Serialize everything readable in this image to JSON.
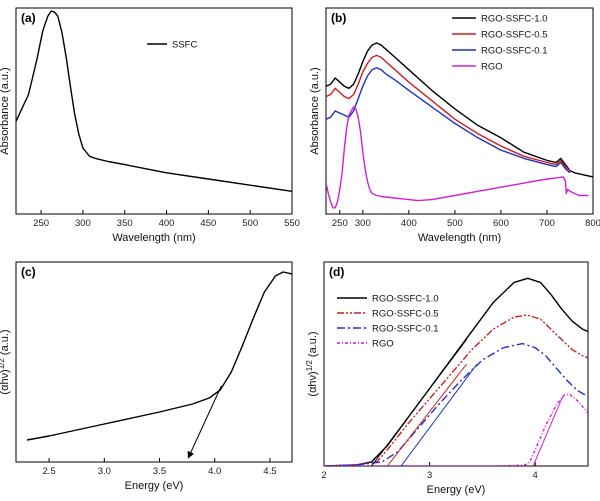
{
  "chart_data": [
    {
      "id": "a",
      "type": "line",
      "panel_label": "(a)",
      "xlabel": "Wavelength (nm)",
      "ylabel": "Absorbance (a.u.)",
      "xlim": [
        220,
        550
      ],
      "ylim": [
        0,
        1
      ],
      "xticks": [
        250,
        300,
        350,
        400,
        450,
        500,
        550
      ],
      "legend_position": "top-right",
      "series": [
        {
          "name": "SSFC",
          "color": "#000000",
          "dash": "",
          "x": [
            220,
            235,
            245,
            252,
            258,
            262,
            266,
            270,
            275,
            280,
            285,
            290,
            295,
            300,
            308,
            315,
            330,
            350,
            400,
            450,
            500,
            550
          ],
          "y": [
            0.45,
            0.58,
            0.75,
            0.89,
            0.96,
            0.985,
            0.98,
            0.96,
            0.88,
            0.76,
            0.62,
            0.49,
            0.39,
            0.32,
            0.28,
            0.27,
            0.255,
            0.24,
            0.2,
            0.17,
            0.14,
            0.11
          ]
        }
      ]
    },
    {
      "id": "b",
      "type": "line",
      "panel_label": "(b)",
      "xlabel": "Wavelength (nm)",
      "ylabel": "Absorbance (a.u.)",
      "xlim": [
        220,
        800
      ],
      "ylim": [
        0,
        1
      ],
      "xticks": [
        250,
        300,
        400,
        500,
        600,
        700,
        800
      ],
      "legend_position": "top-right",
      "series": [
        {
          "name": "RGO-SSFC-1.0",
          "color": "#000000",
          "dash": "",
          "x": [
            220,
            230,
            240,
            250,
            260,
            270,
            280,
            290,
            300,
            310,
            320,
            330,
            340,
            350,
            370,
            400,
            450,
            500,
            550,
            600,
            650,
            700,
            720,
            730,
            740,
            750,
            760,
            780,
            800
          ],
          "y": [
            0.62,
            0.63,
            0.66,
            0.64,
            0.62,
            0.61,
            0.63,
            0.68,
            0.74,
            0.79,
            0.82,
            0.83,
            0.82,
            0.8,
            0.76,
            0.7,
            0.6,
            0.51,
            0.43,
            0.37,
            0.3,
            0.26,
            0.25,
            0.27,
            0.24,
            0.21,
            0.2,
            0.19,
            0.18
          ]
        },
        {
          "name": "RGO-SSFC-0.5",
          "color": "#cc1f1f",
          "dash": "",
          "x": [
            220,
            230,
            240,
            250,
            260,
            270,
            280,
            290,
            300,
            310,
            320,
            330,
            340,
            350,
            370,
            400,
            450,
            500,
            550,
            600,
            650,
            700,
            720,
            730,
            740,
            750
          ],
          "y": [
            0.57,
            0.58,
            0.61,
            0.59,
            0.57,
            0.56,
            0.58,
            0.63,
            0.69,
            0.73,
            0.76,
            0.77,
            0.76,
            0.74,
            0.7,
            0.64,
            0.55,
            0.46,
            0.39,
            0.33,
            0.28,
            0.25,
            0.24,
            0.26,
            0.23,
            0.21
          ]
        },
        {
          "name": "RGO-SSFC-0.1",
          "color": "#1f2fcc",
          "dash": "",
          "x": [
            220,
            230,
            240,
            250,
            260,
            270,
            280,
            290,
            300,
            310,
            320,
            330,
            340,
            350,
            370,
            400,
            450,
            500,
            550,
            600,
            650,
            700,
            720,
            730,
            740,
            750
          ],
          "y": [
            0.46,
            0.47,
            0.5,
            0.49,
            0.48,
            0.47,
            0.5,
            0.56,
            0.62,
            0.67,
            0.7,
            0.71,
            0.7,
            0.68,
            0.65,
            0.6,
            0.52,
            0.44,
            0.37,
            0.31,
            0.27,
            0.24,
            0.23,
            0.25,
            0.22,
            0.2
          ]
        },
        {
          "name": "RGO",
          "color": "#d020d0",
          "dash": "",
          "x": [
            220,
            225,
            230,
            235,
            240,
            245,
            250,
            255,
            260,
            265,
            270,
            275,
            280,
            285,
            290,
            295,
            300,
            305,
            310,
            315,
            320,
            330,
            340,
            360,
            380,
            400,
            420,
            450,
            500,
            550,
            600,
            650,
            700,
            720,
            735,
            740,
            742,
            745,
            750,
            760,
            770,
            780,
            790
          ],
          "y": [
            0.15,
            0.1,
            0.06,
            0.03,
            0.03,
            0.06,
            0.12,
            0.2,
            0.32,
            0.42,
            0.48,
            0.5,
            0.52,
            0.51,
            0.47,
            0.4,
            0.3,
            0.22,
            0.16,
            0.12,
            0.1,
            0.09,
            0.085,
            0.08,
            0.075,
            0.07,
            0.065,
            0.07,
            0.09,
            0.11,
            0.13,
            0.15,
            0.17,
            0.175,
            0.18,
            0.16,
            0.1,
            0.12,
            0.11,
            0.1,
            0.09,
            0.09,
            0.09
          ]
        }
      ]
    },
    {
      "id": "c",
      "type": "line",
      "panel_label": "(c)",
      "xlabel": "Energy (eV)",
      "ylabel": "(αhν)^1/2 (a.u.)",
      "ylabel_text": "(αhν)",
      "ylabel_sup": "1/2",
      "ylabel_unit": " (a.u.)",
      "xlim": [
        2.2,
        4.7
      ],
      "ylim": [
        0,
        1
      ],
      "xticks": [
        2.5,
        3.0,
        3.5,
        4.0,
        4.5
      ],
      "series": [
        {
          "name": "curve",
          "color": "#000000",
          "dash": "",
          "x": [
            2.3,
            2.5,
            3.0,
            3.5,
            3.8,
            3.95,
            4.05,
            4.15,
            4.25,
            4.35,
            4.45,
            4.55,
            4.62,
            4.7
          ],
          "y": [
            0.11,
            0.13,
            0.19,
            0.25,
            0.29,
            0.32,
            0.36,
            0.45,
            0.58,
            0.72,
            0.85,
            0.93,
            0.95,
            0.94
          ]
        },
        {
          "name": "tangent",
          "color": "#000000",
          "dash": "",
          "arrow": true,
          "x": [
            4.06,
            3.76
          ],
          "y": [
            0.38,
            0.02
          ]
        }
      ]
    },
    {
      "id": "d",
      "type": "line",
      "panel_label": "(d)",
      "xlabel": "Energy (eV)",
      "ylabel": "(αhν)^1/2 (a.u.)",
      "ylabel_text": "(αhν)",
      "ylabel_sup": "1/2",
      "ylabel_unit": " (a.u.)",
      "xlim": [
        2.0,
        4.5
      ],
      "ylim": [
        0,
        1
      ],
      "xticks": [
        2,
        3,
        4
      ],
      "legend_position": "top-left",
      "series": [
        {
          "name": "RGO-SSFC-1.0",
          "color": "#000000",
          "dash": "",
          "x": [
            2.0,
            2.3,
            2.45,
            2.6,
            2.8,
            3.0,
            3.2,
            3.4,
            3.6,
            3.8,
            3.93,
            4.05,
            4.15,
            4.25,
            4.35,
            4.45,
            4.5
          ],
          "y": [
            0.0,
            0.005,
            0.02,
            0.1,
            0.24,
            0.38,
            0.52,
            0.66,
            0.8,
            0.9,
            0.92,
            0.9,
            0.84,
            0.77,
            0.71,
            0.67,
            0.66
          ]
        },
        {
          "name": "RGO-SSFC-0.5",
          "color": "#cc1f1f",
          "dash": "7,2,2,2,2,2",
          "x": [
            2.0,
            2.3,
            2.5,
            2.6,
            2.8,
            3.0,
            3.2,
            3.4,
            3.6,
            3.8,
            3.92,
            4.05,
            4.15,
            4.25,
            4.35,
            4.45,
            4.5
          ],
          "y": [
            0.0,
            0.005,
            0.02,
            0.08,
            0.21,
            0.33,
            0.45,
            0.57,
            0.67,
            0.73,
            0.74,
            0.72,
            0.67,
            0.62,
            0.57,
            0.54,
            0.53
          ]
        },
        {
          "name": "RGO-SSFC-0.1",
          "color": "#1f2fcc",
          "dash": "8,3,2,3",
          "x": [
            2.0,
            2.3,
            2.55,
            2.7,
            2.9,
            3.1,
            3.3,
            3.5,
            3.7,
            3.88,
            4.0,
            4.1,
            4.2,
            4.3,
            4.4,
            4.5
          ],
          "y": [
            0.0,
            0.005,
            0.02,
            0.07,
            0.19,
            0.31,
            0.42,
            0.52,
            0.58,
            0.6,
            0.58,
            0.54,
            0.48,
            0.42,
            0.37,
            0.34
          ]
        },
        {
          "name": "RGO",
          "color": "#d020d0",
          "dash": "3,2,1,2",
          "x": [
            2.0,
            3.6,
            3.9,
            3.95,
            4.0,
            4.1,
            4.2,
            4.28,
            4.33,
            4.4,
            4.5
          ],
          "y": [
            0.0,
            0.0,
            0.005,
            0.02,
            0.08,
            0.2,
            0.3,
            0.35,
            0.35,
            0.32,
            0.26
          ]
        },
        {
          "name": "tangent-1.0",
          "color": "#000000",
          "dash": "",
          "legend": false,
          "x": [
            2.45,
            3.35
          ],
          "y": [
            0.0,
            0.62
          ]
        },
        {
          "name": "tangent-0.5",
          "color": "#cc1f1f",
          "dash": "",
          "legend": false,
          "x": [
            2.6,
            3.35
          ],
          "y": [
            0.0,
            0.5
          ]
        },
        {
          "name": "tangent-0.1",
          "color": "#1f2fcc",
          "dash": "",
          "legend": false,
          "x": [
            2.73,
            3.45
          ],
          "y": [
            0.0,
            0.5
          ]
        },
        {
          "name": "tangent-RGO",
          "color": "#d020d0",
          "dash": "",
          "legend": false,
          "x": [
            3.98,
            4.26
          ],
          "y": [
            0.0,
            0.34
          ]
        }
      ]
    }
  ]
}
